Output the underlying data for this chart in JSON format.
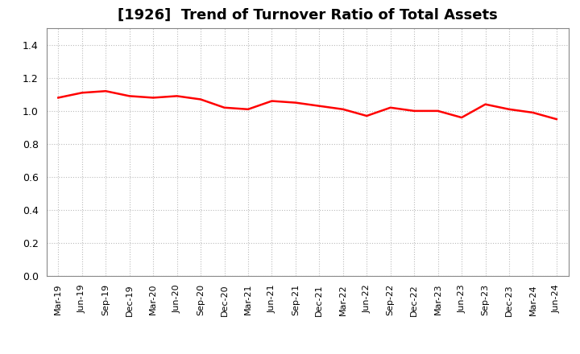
{
  "title": "[1926]  Trend of Turnover Ratio of Total Assets",
  "x_labels": [
    "Mar-19",
    "Jun-19",
    "Sep-19",
    "Dec-19",
    "Mar-20",
    "Jun-20",
    "Sep-20",
    "Dec-20",
    "Mar-21",
    "Jun-21",
    "Sep-21",
    "Dec-21",
    "Mar-22",
    "Jun-22",
    "Sep-22",
    "Dec-22",
    "Mar-23",
    "Jun-23",
    "Sep-23",
    "Dec-23",
    "Mar-24",
    "Jun-24"
  ],
  "y_values": [
    1.08,
    1.11,
    1.12,
    1.09,
    1.08,
    1.09,
    1.07,
    1.02,
    1.01,
    1.06,
    1.05,
    1.03,
    1.01,
    0.97,
    1.02,
    1.0,
    1.0,
    0.96,
    1.04,
    1.01,
    0.99,
    0.95
  ],
  "line_color": "#ff0000",
  "line_width": 1.8,
  "ylim": [
    0.0,
    1.5
  ],
  "yticks": [
    0.0,
    0.2,
    0.4,
    0.6,
    0.8,
    1.0,
    1.2,
    1.4
  ],
  "title_fontsize": 13,
  "tick_fontsize": 8,
  "grid_color": "#bbbbbb",
  "background_color": "#ffffff",
  "spine_color": "#888888"
}
